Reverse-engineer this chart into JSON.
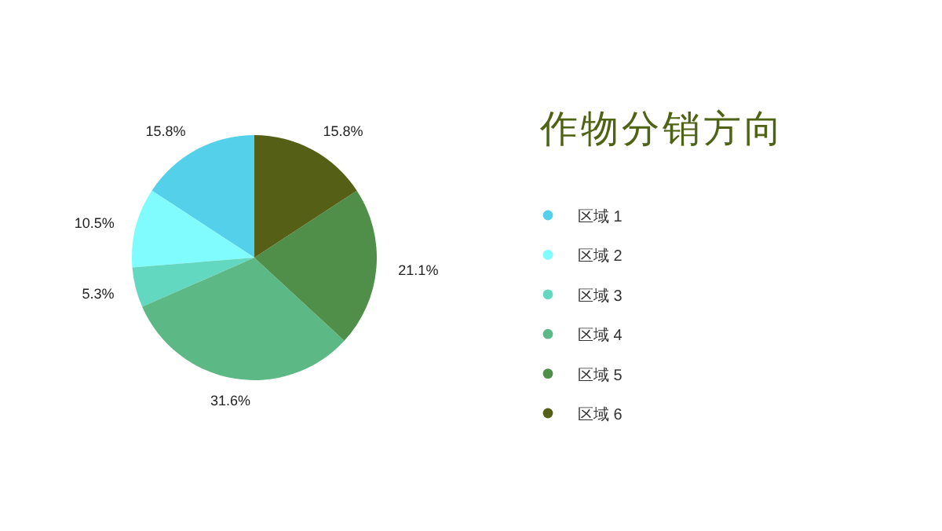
{
  "chart_data": {
    "type": "pie",
    "title": "作物分销方向",
    "categories": [
      "区域 1",
      "区域 2",
      "区域 3",
      "区域 4",
      "区域 5",
      "区域 6"
    ],
    "values": [
      15.8,
      10.5,
      5.3,
      31.6,
      21.1,
      15.8
    ],
    "colors": [
      "#55d0ea",
      "#80fcff",
      "#63d8c0",
      "#5cb885",
      "#4f8f4a",
      "#556016"
    ],
    "value_labels": [
      "15.8%",
      "10.5%",
      "5.3%",
      "31.6%",
      "21.1%",
      "15.8%"
    ],
    "legend": "right"
  }
}
